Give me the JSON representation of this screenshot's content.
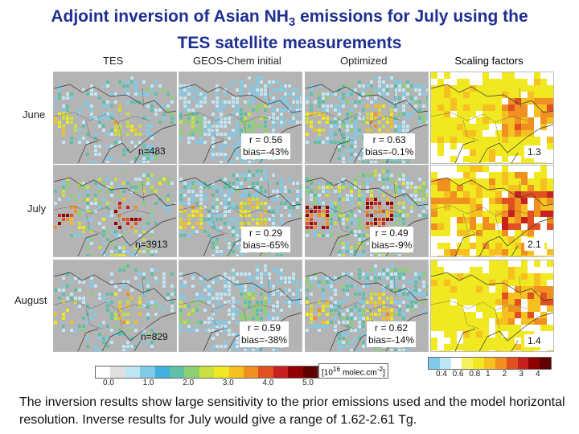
{
  "title": {
    "prefix": "Adjoint inversion of Asian NH",
    "subscript": "3",
    "suffix": " emissions for July using the",
    "line2": "TES satellite measurements"
  },
  "columns": {
    "tes": "TES",
    "initial": "GEOS-Chem initial",
    "optimized": "Optimized",
    "scaling": "Scaling factors"
  },
  "rows": [
    {
      "label": "June",
      "count": "n=483",
      "initial_r": "r = 0.56",
      "initial_bias": "bias=-43%",
      "opt_r": "r = 0.63",
      "opt_bias": "bias=-0.1%",
      "scaling": "1.3"
    },
    {
      "label": "July",
      "count": "n=3913",
      "initial_r": "r = 0.29",
      "initial_bias": "bias=-65%",
      "opt_r": "r = 0.49",
      "opt_bias": "bias=-9%",
      "scaling": "2.1"
    },
    {
      "label": "August",
      "count": "n=829",
      "initial_r": "r = 0.59",
      "initial_bias": "bias=-38%",
      "opt_r": "r = 0.62",
      "opt_bias": "bias=-14%",
      "scaling": "1.4"
    }
  ],
  "colorbar_left": {
    "ticks": [
      "0.0",
      "1.0",
      "2.0",
      "3.0",
      "4.0",
      "5.0"
    ],
    "unit_prefix": "[10",
    "unit_exp": "16",
    "unit_suffix": " molec.cm",
    "unit_exp2": "-2",
    "unit_close": "]",
    "colors": [
      "#ffffff",
      "#e0e0e0",
      "#bfe6f5",
      "#7fcbe8",
      "#40b0dc",
      "#5fc0a8",
      "#8cd070",
      "#c8e040",
      "#f0e820",
      "#f5c020",
      "#f09020",
      "#e05020",
      "#c82020",
      "#900000",
      "#600000"
    ]
  },
  "colorbar_right": {
    "ticks": [
      "0.4",
      "0.6",
      "0.8",
      "1",
      "2",
      "3",
      "4"
    ],
    "colors": [
      "#7fcbe8",
      "#bfe6f5",
      "#ffffff",
      "#f5f060",
      "#f0e820",
      "#f5c020",
      "#f09020",
      "#e05020",
      "#c82020",
      "#900000",
      "#600000"
    ]
  },
  "caption": "The inversion results show large sensitivity to the prior emissions used and the model horizontal resolution. Inverse results for July would give a range of 1.62-2.61 Tg."
}
